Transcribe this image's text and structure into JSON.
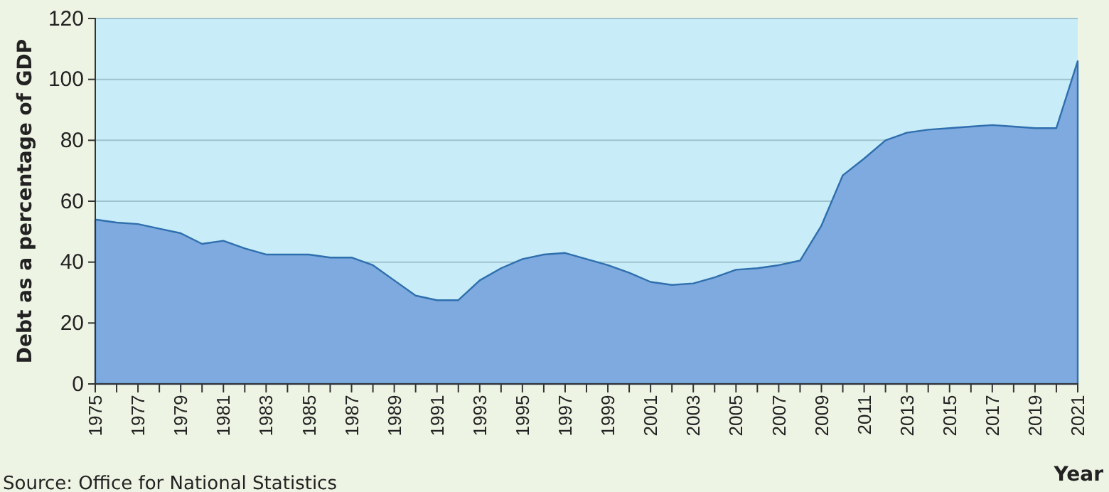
{
  "chart_data": {
    "type": "area",
    "xlabel": "Year",
    "ylabel": "Debt as a percentage of GDP",
    "annotations": [
      "Source: Office for National Statistics"
    ],
    "x": [
      1975,
      1976,
      1977,
      1978,
      1979,
      1980,
      1981,
      1982,
      1983,
      1984,
      1985,
      1986,
      1987,
      1988,
      1989,
      1990,
      1991,
      1992,
      1993,
      1994,
      1995,
      1996,
      1997,
      1998,
      1999,
      2000,
      2001,
      2002,
      2003,
      2004,
      2005,
      2006,
      2007,
      2008,
      2009,
      2010,
      2011,
      2012,
      2013,
      2014,
      2015,
      2016,
      2017,
      2018,
      2019,
      2020,
      2021
    ],
    "series": [
      {
        "color": "#7eaadf",
        "values": [
          54,
          53,
          52.5,
          51,
          49.5,
          46,
          47,
          44.5,
          42.5,
          42.5,
          42.5,
          41.5,
          41.5,
          39,
          34,
          29,
          27.5,
          27.5,
          34,
          38,
          41,
          42.5,
          43,
          41,
          39,
          36.5,
          33.5,
          32.5,
          33,
          35,
          37.5,
          38,
          39,
          40.5,
          52,
          68.5,
          74,
          80,
          82.5,
          83.5,
          84,
          84.5,
          85,
          84.5,
          84,
          84,
          106
        ]
      }
    ],
    "xlim": [
      1975,
      2021
    ],
    "ylim": [
      0,
      120
    ],
    "yticks": [
      0,
      20,
      40,
      60,
      80,
      100,
      120
    ],
    "xticks": [
      1975,
      {
        "value": 1976,
        "label": null
      },
      1977,
      {
        "value": 1978,
        "label": null
      },
      1979,
      {
        "value": 1980,
        "label": null
      },
      1981,
      {
        "value": 1982,
        "label": null
      },
      1983,
      {
        "value": 1984,
        "label": null
      },
      1985,
      {
        "value": 1986,
        "label": null
      },
      1987,
      {
        "value": 1988,
        "label": null
      },
      1989,
      {
        "value": 1990,
        "label": null
      },
      1991,
      {
        "value": 1992,
        "label": null
      },
      1993,
      {
        "value": 1994,
        "label": null
      },
      1995,
      {
        "value": 1996,
        "label": null
      },
      1997,
      {
        "value": 1998,
        "label": null
      },
      1999,
      {
        "value": 2000,
        "label": null
      },
      2001,
      {
        "value": 2002,
        "label": null
      },
      2003,
      {
        "value": 2004,
        "label": null
      },
      2005,
      {
        "value": 2006,
        "label": null
      },
      2007,
      {
        "value": 2008,
        "label": null
      },
      2009,
      {
        "value": 2010,
        "label": null
      },
      2011,
      {
        "value": 2012,
        "label": null
      },
      2013,
      {
        "value": 2014,
        "label": null
      },
      2015,
      {
        "value": 2016,
        "label": null
      },
      2017,
      {
        "value": 2018,
        "label": null
      },
      2019,
      {
        "value": 2020,
        "label": null
      },
      2021
    ],
    "grid": "y"
  }
}
